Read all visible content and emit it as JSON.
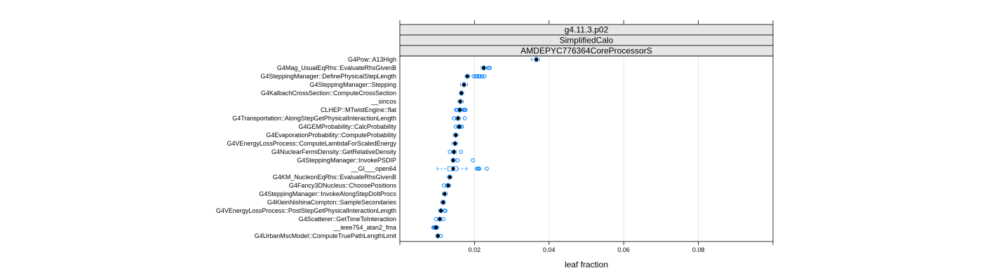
{
  "chart_data": {
    "type": "box",
    "panel_strips": [
      "g4.11.3.p02",
      "SimplifiedCalo",
      "AMDEPYC776364CoreProcessorS"
    ],
    "xlabel": "leaf fraction",
    "xlim": [
      0.0,
      0.1
    ],
    "x_ticks": [
      0.02,
      0.04,
      0.06,
      0.08
    ],
    "x_tick_labels": [
      "0.02",
      "0.04",
      "0.06",
      "0.08"
    ],
    "grid": true,
    "colors": {
      "box": "#0080ff",
      "median": "#000000",
      "outlier": "#0080ff",
      "strip": "#e6e6e6",
      "grid": "#e6e6e6"
    },
    "categories": [
      "G4Pow::A13High",
      "G4Mag_UsualEqRhs::EvaluateRhsGivenB",
      "G4SteppingManager::DefinePhysicalStepLength",
      "G4SteppingManager::Stepping",
      "G4KalbachCrossSection::ComputeCrossSection",
      "__sincos",
      "CLHEP::MTwistEngine::flat",
      "G4Transportation::AlongStepGetPhysicalInteractionLength",
      "G4GEMProbability::CalcProbability",
      "G4EvaporationProbability::ComputeProbability",
      "G4VEnergyLossProcess::ComputeLambdaForScaledEnergy",
      "G4NuclearFermiDensity::GetRelativeDensity",
      "G4SteppingManager::InvokePSDIP",
      "__GI___open64",
      "G4KM_NucleonEqRhs::EvaluateRhsGivenB",
      "G4Fancy3DNucleus::ChoosePositions",
      "G4SteppingManager::InvokeAlongStepDoItProcs",
      "G4KleinNishinaCompton::SampleSecondaries",
      "G4VEnergyLossProcess::PostStepGetPhysicalInteractionLength",
      "G4Scatterer::GetTimeToInteraction",
      "__ieee754_atan2_fma",
      "G4UrbanMscModel::ComputeTruePathLengthLimit"
    ],
    "boxes": [
      {
        "lower_whisker": 0.0353,
        "q1": 0.0362,
        "median": 0.0366,
        "q3": 0.0369,
        "upper_whisker": 0.0374,
        "outliers": []
      },
      {
        "lower_whisker": 0.0218,
        "q1": 0.0222,
        "median": 0.0225,
        "q3": 0.0228,
        "upper_whisker": 0.0232,
        "outliers": [
          0.0238,
          0.0241
        ]
      },
      {
        "lower_whisker": 0.0175,
        "q1": 0.0179,
        "median": 0.0181,
        "q3": 0.0183,
        "upper_whisker": 0.0187,
        "outliers": [
          0.0198,
          0.0203,
          0.0207,
          0.0212,
          0.0215,
          0.0221,
          0.0227
        ]
      },
      {
        "lower_whisker": 0.0163,
        "q1": 0.0169,
        "median": 0.0172,
        "q3": 0.0175,
        "upper_whisker": 0.0181,
        "outliers": []
      },
      {
        "lower_whisker": 0.016,
        "q1": 0.0163,
        "median": 0.0165,
        "q3": 0.0168,
        "upper_whisker": 0.0171,
        "outliers": []
      },
      {
        "lower_whisker": 0.0156,
        "q1": 0.016,
        "median": 0.0162,
        "q3": 0.0165,
        "upper_whisker": 0.017,
        "outliers": []
      },
      {
        "lower_whisker": 0.0155,
        "q1": 0.0158,
        "median": 0.0161,
        "q3": 0.0164,
        "upper_whisker": 0.0168,
        "outliers": [
          0.0151,
          0.0153,
          0.0171,
          0.0174,
          0.0176
        ]
      },
      {
        "lower_whisker": 0.015,
        "q1": 0.0153,
        "median": 0.0156,
        "q3": 0.0159,
        "upper_whisker": 0.0163,
        "outliers": [
          0.0145,
          0.0174
        ]
      },
      {
        "lower_whisker": 0.0152,
        "q1": 0.0156,
        "median": 0.0159,
        "q3": 0.0161,
        "upper_whisker": 0.0164,
        "outliers": [
          0.015,
          0.0163,
          0.0166
        ]
      },
      {
        "lower_whisker": 0.0143,
        "q1": 0.0147,
        "median": 0.015,
        "q3": 0.0152,
        "upper_whisker": 0.0156,
        "outliers": []
      },
      {
        "lower_whisker": 0.014,
        "q1": 0.0145,
        "median": 0.0148,
        "q3": 0.0151,
        "upper_whisker": 0.0155,
        "outliers": []
      },
      {
        "lower_whisker": 0.014,
        "q1": 0.0143,
        "median": 0.0145,
        "q3": 0.0148,
        "upper_whisker": 0.0151,
        "outliers": [
          0.0134,
          0.0164
        ]
      },
      {
        "lower_whisker": 0.0138,
        "q1": 0.0141,
        "median": 0.0143,
        "q3": 0.0146,
        "upper_whisker": 0.015,
        "outliers": [
          0.0155,
          0.0196
        ]
      },
      {
        "lower_whisker": 0.01,
        "q1": 0.0129,
        "median": 0.0143,
        "q3": 0.0155,
        "upper_whisker": 0.018,
        "outliers": [
          0.0207,
          0.021,
          0.0213,
          0.0233
        ]
      },
      {
        "lower_whisker": 0.0127,
        "q1": 0.0131,
        "median": 0.0134,
        "q3": 0.0136,
        "upper_whisker": 0.014,
        "outliers": []
      },
      {
        "lower_whisker": 0.0123,
        "q1": 0.0127,
        "median": 0.013,
        "q3": 0.0132,
        "upper_whisker": 0.0136,
        "outliers": [
          0.0118,
          0.0127
        ]
      },
      {
        "lower_whisker": 0.0114,
        "q1": 0.0118,
        "median": 0.012,
        "q3": 0.0123,
        "upper_whisker": 0.0127,
        "outliers": []
      },
      {
        "lower_whisker": 0.011,
        "q1": 0.0114,
        "median": 0.0116,
        "q3": 0.0119,
        "upper_whisker": 0.0122,
        "outliers": []
      },
      {
        "lower_whisker": 0.0104,
        "q1": 0.0108,
        "median": 0.011,
        "q3": 0.0113,
        "upper_whisker": 0.0118,
        "outliers": [
          0.012,
          0.0122
        ]
      },
      {
        "lower_whisker": 0.0101,
        "q1": 0.0105,
        "median": 0.0107,
        "q3": 0.0109,
        "upper_whisker": 0.0112,
        "outliers": [
          0.0097,
          0.0117
        ]
      },
      {
        "lower_whisker": 0.0092,
        "q1": 0.0095,
        "median": 0.0097,
        "q3": 0.0099,
        "upper_whisker": 0.0102,
        "outliers": [
          0.009,
          0.0092,
          0.0094,
          0.01
        ]
      },
      {
        "lower_whisker": 0.0097,
        "q1": 0.01,
        "median": 0.0102,
        "q3": 0.0104,
        "upper_whisker": 0.0107,
        "outliers": [
          0.011
        ]
      }
    ]
  }
}
